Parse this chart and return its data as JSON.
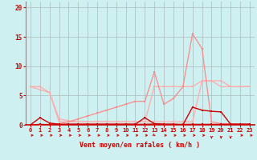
{
  "x": [
    0,
    1,
    2,
    3,
    4,
    5,
    6,
    7,
    8,
    9,
    10,
    11,
    12,
    13,
    14,
    15,
    16,
    17,
    18,
    19,
    20,
    21,
    22,
    23
  ],
  "line_gust_max": [
    6.5,
    6.5,
    5.5,
    0.5,
    0.5,
    0.5,
    0.5,
    0.5,
    0.5,
    0.5,
    0.5,
    0.5,
    0.5,
    0.5,
    0.5,
    0.5,
    0.5,
    0.5,
    7.5,
    7.5,
    7.5,
    6.5,
    6.5,
    6.5
  ],
  "line_gust": [
    0.0,
    0.0,
    0.1,
    0.2,
    0.5,
    1.0,
    1.5,
    2.0,
    2.5,
    3.0,
    3.5,
    4.0,
    4.0,
    9.0,
    3.5,
    4.5,
    6.5,
    15.5,
    13.0,
    0.5,
    0.2,
    0.2,
    0.1,
    0.1
  ],
  "line_wind_mean": [
    6.5,
    6.0,
    5.5,
    1.0,
    0.7,
    0.5,
    0.5,
    0.5,
    0.5,
    0.5,
    0.5,
    0.5,
    0.5,
    6.5,
    6.5,
    6.5,
    6.5,
    6.5,
    7.5,
    7.5,
    6.5,
    6.5,
    6.5,
    6.5
  ],
  "line_dark1": [
    0.0,
    0.1,
    0.05,
    0.05,
    0.1,
    0.1,
    0.1,
    0.1,
    0.1,
    0.1,
    0.1,
    0.1,
    0.1,
    0.15,
    0.1,
    0.1,
    0.1,
    0.1,
    0.1,
    0.1,
    0.1,
    0.1,
    0.1,
    0.1
  ],
  "line_dark2": [
    0.0,
    1.2,
    0.3,
    0.1,
    0.1,
    0.1,
    0.1,
    0.1,
    0.1,
    0.1,
    0.1,
    0.1,
    1.2,
    0.2,
    0.1,
    0.1,
    0.0,
    3.0,
    2.5,
    2.3,
    2.2,
    0.1,
    0.1,
    0.1
  ],
  "bg_color": "#cff0f0",
  "grid_color": "#aabbbb",
  "color_light_pink": "#ffaaaa",
  "color_medium_pink": "#ff8888",
  "color_dark_red": "#cc0000",
  "xlabel": "Vent moyen/en rafales ( km/h )",
  "ylim": [
    0,
    21
  ],
  "xlim": [
    -0.5,
    23.5
  ],
  "yticks": [
    0,
    5,
    10,
    15,
    20
  ],
  "xticks": [
    0,
    1,
    2,
    3,
    4,
    5,
    6,
    7,
    8,
    9,
    10,
    11,
    12,
    13,
    14,
    15,
    16,
    17,
    18,
    19,
    20,
    21,
    22,
    23
  ],
  "arrow_directions": [
    0,
    0,
    0,
    0,
    0,
    0,
    0,
    0,
    0,
    0,
    0,
    0,
    0,
    30,
    0,
    0,
    0,
    0,
    0,
    -90,
    -90,
    -90,
    0,
    0
  ]
}
